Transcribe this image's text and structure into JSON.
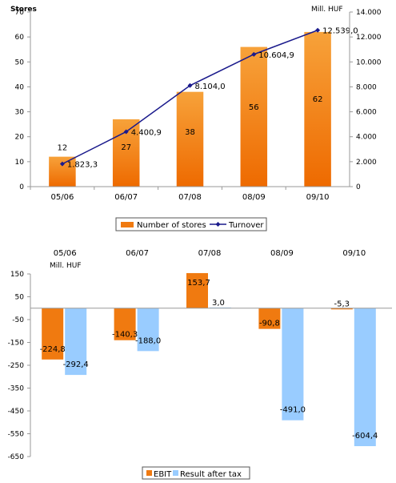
{
  "chart_data": [
    {
      "type": "bar+line",
      "categories": [
        "05/06",
        "06/07",
        "07/08",
        "08/09",
        "09/10"
      ],
      "series": [
        {
          "name": "Number of stores",
          "type": "bar",
          "axis": "left",
          "values": [
            12,
            27,
            38,
            56,
            62
          ],
          "labels": [
            "12",
            "27",
            "38",
            "56",
            "62"
          ],
          "color": "#f07a10"
        },
        {
          "name": "Turnover",
          "type": "line",
          "axis": "right",
          "values": [
            1823.3,
            4400.9,
            8104.0,
            10604.9,
            12539.0
          ],
          "labels": [
            "1.823,3",
            "4.400,9",
            "8.104,0",
            "10.604,9",
            "12.539,0"
          ],
          "color": "#1a1a8c"
        }
      ],
      "ylabel_left": "Stores",
      "ylabel_right": "Mill. HUF",
      "ylim_left": [
        0,
        70
      ],
      "ylim_right": [
        0,
        14000
      ],
      "yticks_left": [
        "0",
        "10",
        "20",
        "30",
        "40",
        "50",
        "60",
        "70"
      ],
      "yticks_right": [
        "0",
        "2.000",
        "4.000",
        "6.000",
        "8.000",
        "10.000",
        "12.000",
        "14.000"
      ],
      "legend": "bottom",
      "grid": false
    },
    {
      "type": "bar",
      "categories": [
        "05/06",
        "06/07",
        "07/08",
        "08/09",
        "09/10"
      ],
      "series": [
        {
          "name": "EBIT",
          "values": [
            -224.8,
            -140.3,
            153.7,
            -90.8,
            -5.3
          ],
          "labels": [
            "-224,8",
            "-140,3",
            "153,7",
            "-90,8",
            "-5,3"
          ],
          "color": "#f07a10"
        },
        {
          "name": "Result after tax",
          "values": [
            -292.4,
            -188.0,
            3.0,
            -491.0,
            -604.4
          ],
          "labels": [
            "-292,4",
            "-188,0",
            "3,0",
            "-491,0",
            "-604,4"
          ],
          "color": "#99ccff"
        }
      ],
      "ylabel": "Mill. HUF",
      "ylim": [
        -650,
        150
      ],
      "yticks": [
        "150",
        "50",
        "-50",
        "-150",
        "-250",
        "-350",
        "-450",
        "-550",
        "-650"
      ],
      "category_position": "top",
      "legend": "bottom",
      "grid": false
    }
  ]
}
